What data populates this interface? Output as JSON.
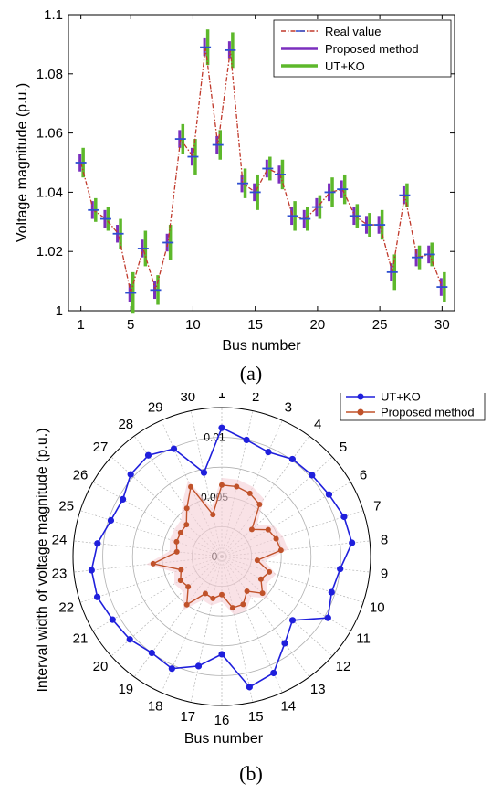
{
  "panel_labels": {
    "a": "(a)",
    "b": "(b)"
  },
  "chart_data": [
    {
      "type": "line",
      "xlabel": "Bus number",
      "ylabel": "Voltage magnitude (p.u.)",
      "xlim": [
        0,
        31
      ],
      "ylim": [
        1.0,
        1.1
      ],
      "xticks": [
        1,
        5,
        10,
        15,
        20,
        25,
        30
      ],
      "yticks": [
        1,
        1.02,
        1.04,
        1.06,
        1.08,
        1.1
      ],
      "ytick_labels": [
        "1",
        "1.02",
        "1.04",
        "1.06",
        "1.08",
        "1.1"
      ],
      "legend_position": "top-right",
      "grid": false,
      "x": [
        1,
        2,
        3,
        4,
        5,
        6,
        7,
        8,
        9,
        10,
        11,
        12,
        13,
        14,
        15,
        16,
        17,
        18,
        19,
        20,
        21,
        22,
        23,
        24,
        25,
        26,
        27,
        28,
        29,
        30
      ],
      "series": [
        {
          "name": "Real value",
          "color": "#c0392b",
          "style": "dash-dot",
          "values": [
            1.05,
            1.034,
            1.031,
            1.026,
            1.006,
            1.021,
            1.007,
            1.023,
            1.058,
            1.052,
            1.089,
            1.056,
            1.088,
            1.043,
            1.04,
            1.048,
            1.046,
            1.032,
            1.031,
            1.035,
            1.04,
            1.041,
            1.032,
            1.029,
            1.029,
            1.013,
            1.039,
            1.018,
            1.019,
            1.008
          ]
        },
        {
          "name": "Proposed method",
          "color": "#7b2fbe",
          "half_width": [
            0.003,
            0.003,
            0.003,
            0.003,
            0.003,
            0.003,
            0.003,
            0.003,
            0.003,
            0.003,
            0.003,
            0.003,
            0.003,
            0.003,
            0.003,
            0.003,
            0.003,
            0.003,
            0.003,
            0.003,
            0.003,
            0.003,
            0.003,
            0.003,
            0.003,
            0.003,
            0.003,
            0.003,
            0.003,
            0.003
          ]
        },
        {
          "name": "UT+KO",
          "color": "#5db82b",
          "half_width": [
            0.005,
            0.004,
            0.004,
            0.005,
            0.007,
            0.006,
            0.005,
            0.006,
            0.005,
            0.006,
            0.006,
            0.005,
            0.006,
            0.005,
            0.006,
            0.004,
            0.005,
            0.005,
            0.004,
            0.004,
            0.005,
            0.005,
            0.004,
            0.004,
            0.005,
            0.006,
            0.004,
            0.004,
            0.004,
            0.005
          ]
        }
      ],
      "center_marker_color": "#2e4fd1"
    },
    {
      "type": "radar",
      "xlabel": "Bus number",
      "ylabel": "Interval width of voltage magnitude (p.u.)",
      "rlim": [
        0,
        0.0125
      ],
      "rings": [
        0,
        0.0025,
        0.005,
        0.0075,
        0.01,
        0.0125
      ],
      "ring_labels": {
        "0": "0",
        "0.005": "0.005",
        "0.01": "0.01"
      },
      "categories": [
        "1",
        "2",
        "3",
        "4",
        "5",
        "6",
        "7",
        "8",
        "9",
        "10",
        "11",
        "12",
        "13",
        "14",
        "15",
        "16",
        "17",
        "18",
        "19",
        "20",
        "21",
        "22",
        "23",
        "24",
        "25",
        "26",
        "27",
        "28",
        "29",
        "30"
      ],
      "legend_position": "top-right",
      "series": [
        {
          "name": "UT+KO",
          "color": "#1f1fdc",
          "values": [
            0.0108,
            0.01,
            0.0096,
            0.0101,
            0.0102,
            0.0104,
            0.0108,
            0.011,
            0.01,
            0.0097,
            0.0103,
            0.008,
            0.009,
            0.0107,
            0.0112,
            0.0082,
            0.0094,
            0.0103,
            0.01,
            0.0104,
            0.0106,
            0.011,
            0.011,
            0.0105,
            0.0098,
            0.0096,
            0.0103,
            0.0105,
            0.0099,
            0.0072
          ]
        },
        {
          "name": "Proposed method",
          "color": "#c0522a",
          "values": [
            0.006,
            0.006,
            0.0058,
            0.0054,
            0.0034,
            0.0045,
            0.0048,
            0.005,
            0.003,
            0.0042,
            0.0038,
            0.0046,
            0.0036,
            0.0044,
            0.0044,
            0.0032,
            0.0036,
            0.0034,
            0.005,
            0.0038,
            0.004,
            0.0036,
            0.0058,
            0.0038,
            0.004,
            0.004,
            0.004,
            0.005,
            0.0064,
            0.0036
          ]
        }
      ],
      "shade_color": "#f5cfd6"
    }
  ]
}
